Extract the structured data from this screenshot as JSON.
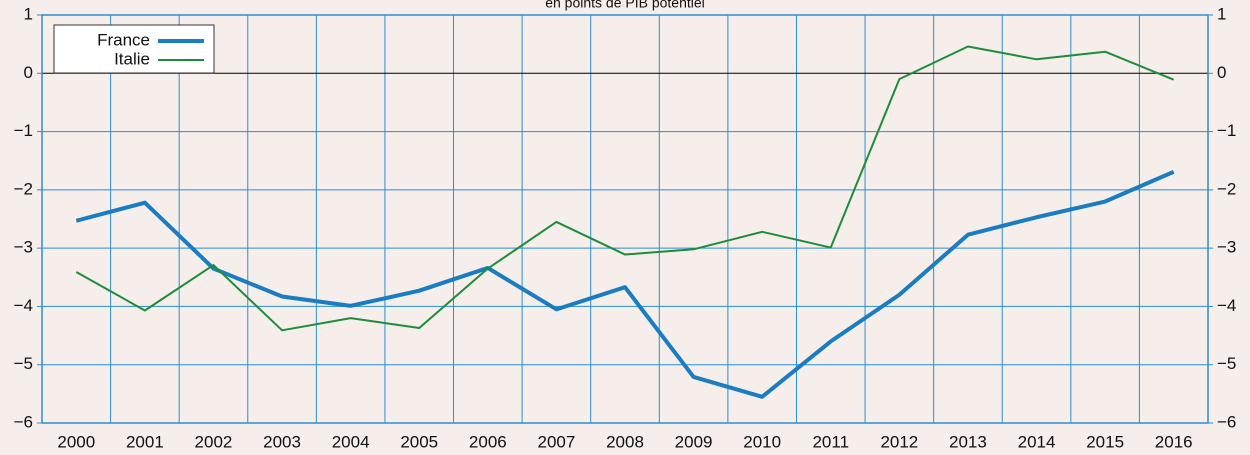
{
  "chart_data": {
    "type": "line",
    "subtitle": "en points de PIB potentiel",
    "categories": [
      "2000",
      "2001",
      "2002",
      "2003",
      "2004",
      "2005",
      "2006",
      "2007",
      "2008",
      "2009",
      "2010",
      "2011",
      "2012",
      "2013",
      "2014",
      "2015",
      "2016"
    ],
    "series": [
      {
        "name": "France",
        "color": "#1a7cc1",
        "width": 4,
        "values": [
          -2.53,
          -2.22,
          -3.35,
          -3.83,
          -3.99,
          -3.73,
          -3.34,
          -4.05,
          -3.67,
          -5.21,
          -5.55,
          -4.6,
          -3.8,
          -2.77,
          -2.47,
          -2.2,
          -1.69
        ]
      },
      {
        "name": "Italie",
        "color": "#1e8c3a",
        "width": 2,
        "values": [
          -3.41,
          -4.07,
          -3.29,
          -4.41,
          -4.2,
          -4.37,
          -3.35,
          -2.55,
          -3.11,
          -3.02,
          -2.72,
          -2.99,
          -0.1,
          0.46,
          0.24,
          0.37,
          -0.11
        ]
      }
    ],
    "ylim": [
      -6,
      1
    ],
    "yticks": [
      {
        "value": -6,
        "label": "−6"
      },
      {
        "value": -5,
        "label": "−5"
      },
      {
        "value": -4,
        "label": "−4"
      },
      {
        "value": -3,
        "label": "−3"
      },
      {
        "value": -2,
        "label": "−2"
      },
      {
        "value": -1,
        "label": "−1"
      },
      0,
      1
    ],
    "grid": true,
    "legend": "top-left"
  }
}
